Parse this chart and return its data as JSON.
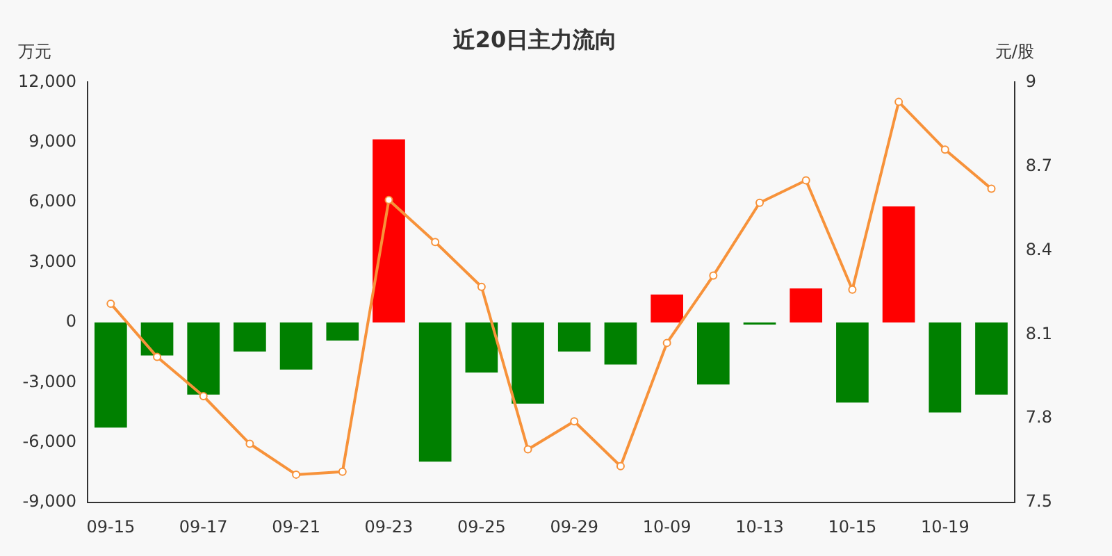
{
  "chart_data": {
    "type": "bar",
    "title": "近20日主力流向",
    "ylabel": "万元",
    "y2label": "元/股",
    "categories": [
      "09-15",
      null,
      "09-17",
      null,
      "09-21",
      null,
      "09-23",
      null,
      "09-25",
      null,
      "09-29",
      null,
      "10-09",
      null,
      "10-13",
      null,
      "10-15",
      null,
      "10-19",
      null
    ],
    "series": [
      {
        "colors": [
          "#008000",
          "#008000",
          "#008000",
          "#008000",
          "#008000",
          "#008000",
          "#ff0000",
          "#008000",
          "#008000",
          "#008000",
          "#008000",
          "#008000",
          "#ff0000",
          "#008000",
          "#008000",
          "#ff0000",
          "#008000",
          "#ff0000",
          "#008000",
          "#008000"
        ],
        "values": [
          -5250,
          -1650,
          -3600,
          -1450,
          -2350,
          -900,
          9150,
          -6950,
          -2500,
          -4050,
          -1450,
          -2100,
          1400,
          -3100,
          -100,
          1700,
          -4000,
          5800,
          -4500,
          -3600
        ]
      },
      {
        "type": "line",
        "axis": "y2",
        "color": "#f7923a",
        "marker": "circle",
        "values": [
          8.21,
          8.02,
          7.88,
          7.71,
          7.6,
          7.61,
          8.58,
          8.43,
          8.27,
          7.69,
          7.79,
          7.63,
          8.07,
          8.31,
          8.57,
          8.65,
          8.26,
          8.93,
          8.76,
          8.62
        ]
      }
    ],
    "ylim": [
      -9000,
      12000
    ],
    "yticks": [
      {
        "value": -9000,
        "label": "-9,000"
      },
      {
        "value": -6000,
        "label": "-6,000"
      },
      {
        "value": -3000,
        "label": "-3,000"
      },
      0,
      {
        "value": 3000,
        "label": "3,000"
      },
      {
        "value": 6000,
        "label": "6,000"
      },
      {
        "value": 9000,
        "label": "9,000"
      },
      {
        "value": 12000,
        "label": "12,000"
      }
    ],
    "y2lim": [
      7.5,
      9
    ],
    "y2ticks": [
      7.5,
      7.8,
      8.1,
      8.4,
      8.7,
      9
    ],
    "grid": false,
    "legend": false
  }
}
